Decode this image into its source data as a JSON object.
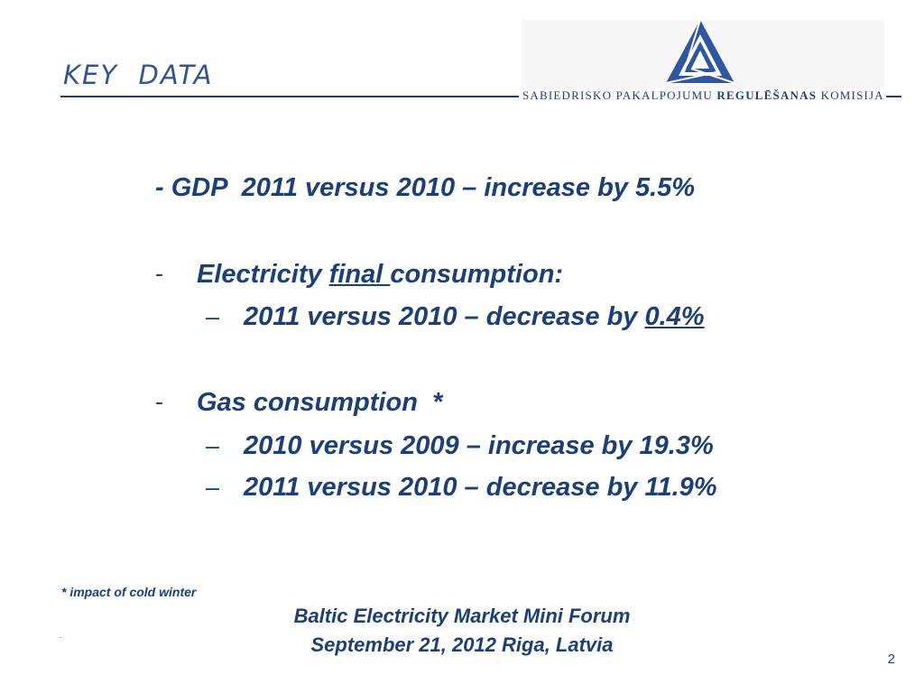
{
  "header": {
    "title": "KEY  DATA",
    "org_part1": "SABIEDRISKO PAKALPOJUMU ",
    "org_part2": "REGULĒŠANAS",
    "org_part3": " KOMISIJA"
  },
  "content": {
    "gdp_line": "- GDP  2011 versus 2010 – increase by 5.5%",
    "electricity": {
      "bullet": "-",
      "label_start": "Electricity ",
      "label_underlined": "final ",
      "label_end": "consumption:",
      "sub_dash": "–",
      "sub_text": "2011 versus 2010 – decrease by ",
      "sub_value": "0.4%"
    },
    "gas": {
      "bullet": "-",
      "label": "Gas consumption  *",
      "sub_dash_1": "–",
      "sub1": "2010 versus 2009 – increase by 19.3%",
      "sub_dash_2": "–",
      "sub2": "2011 versus 2010 – decrease by 11.9%"
    }
  },
  "footnote": "* impact of cold winter",
  "footer": {
    "line1": "Baltic Electricity Market Mini Forum",
    "line2": "September 21, 2012 Riga, Latvia"
  },
  "page_number": "2",
  "colors": {
    "text": "#1a3f7a",
    "title": "#2f5597",
    "logo_blue": "#2e56a6"
  }
}
